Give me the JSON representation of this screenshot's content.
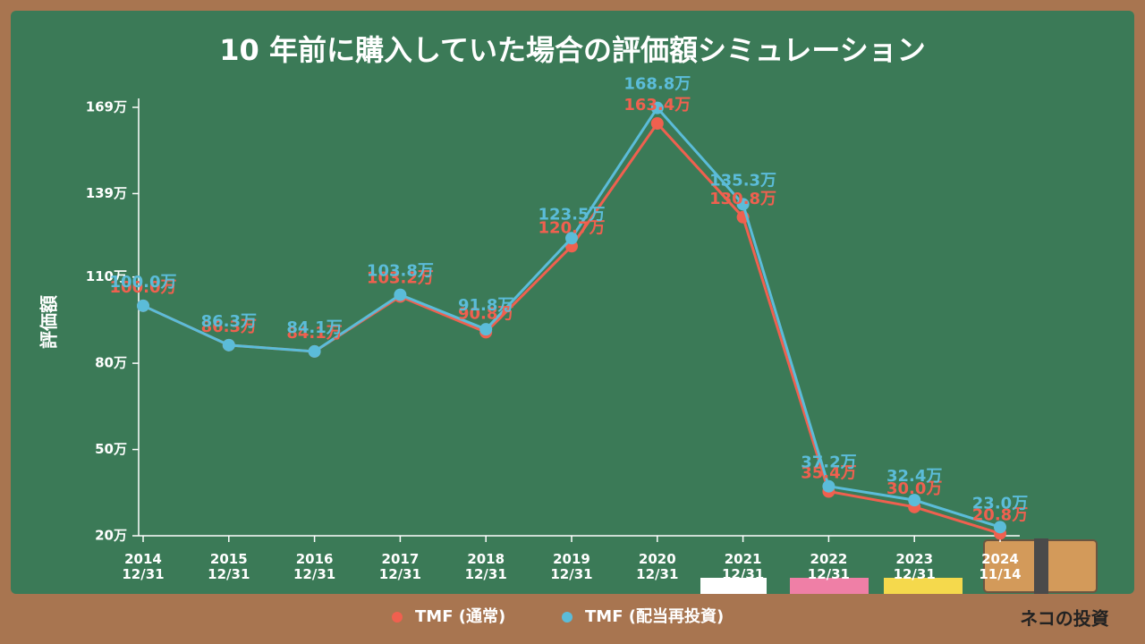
{
  "chart_data": {
    "type": "line",
    "title": "10 年前に購入していた場合の評価額シミュレーション",
    "y_label": "評価額",
    "categories": [
      "2014\n12/31",
      "2015\n12/31",
      "2016\n12/31",
      "2017\n12/31",
      "2018\n12/31",
      "2019\n12/31",
      "2020\n12/31",
      "2021\n12/31",
      "2022\n12/31",
      "2023\n12/31",
      "2024\n11/14"
    ],
    "series": [
      {
        "name": "TMF (通常)",
        "color": "#f0604f",
        "values": [
          100.0,
          86.3,
          84.1,
          103.2,
          90.8,
          120.7,
          163.4,
          130.8,
          35.4,
          30.0,
          20.8
        ],
        "value_labels": [
          "100.0万",
          "86.3万",
          "84.1万",
          "103.2万",
          "90.8万",
          "120.7万",
          "163.4万",
          "130.8万",
          "35.4万",
          "30.0万",
          "20.8万"
        ]
      },
      {
        "name": "TMF (配当再投資)",
        "color": "#5bbcd9",
        "values": [
          100.0,
          86.3,
          84.1,
          103.8,
          91.8,
          123.5,
          168.8,
          135.3,
          37.2,
          32.4,
          23.0
        ],
        "value_labels": [
          "100.0万",
          "86.3万",
          "84.1万",
          "103.8万",
          "91.8万",
          "123.5万",
          "168.8万",
          "135.3万",
          "37.2万",
          "32.4万",
          "23.0万"
        ]
      }
    ],
    "ylim": [
      20,
      169
    ],
    "yticks": [
      {
        "value": 20,
        "label": "20万"
      },
      {
        "value": 50,
        "label": "50万"
      },
      {
        "value": 80,
        "label": "80万"
      },
      {
        "value": 110,
        "label": "110万"
      },
      {
        "value": 139,
        "label": "139万"
      },
      {
        "value": 169,
        "label": "169万"
      }
    ],
    "legend": "bottom",
    "brand": "ネコの投資"
  }
}
